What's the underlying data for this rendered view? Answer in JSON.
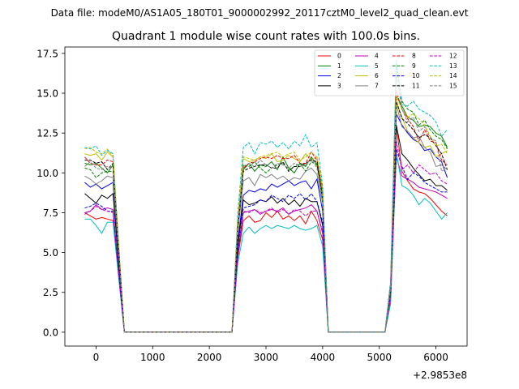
{
  "chart_data": {
    "type": "line",
    "suptitle": "Data file: modeM0/AS1A05_180T01_9000002992_20117cztM0_level2_quad_clean.evt",
    "title": "Quadrant 1 module wise count rates with 100.0s bins.",
    "xlabel": "",
    "ylabel": "",
    "x_offset_label": "+2.9853e8",
    "xlim": [
      -550,
      6550
    ],
    "ylim": [
      -0.87,
      17.9
    ],
    "xticks": [
      0,
      1000,
      2000,
      3000,
      4000,
      5000,
      6000
    ],
    "xtick_labels": [
      "0",
      "1000",
      "2000",
      "3000",
      "4000",
      "5000",
      "6000"
    ],
    "yticks": [
      0,
      2.5,
      5,
      7.5,
      10,
      12.5,
      15,
      17.5
    ],
    "ytick_labels": [
      "0.0",
      "2.5",
      "5.0",
      "7.5",
      "10.0",
      "12.5",
      "15.0",
      "17.5"
    ],
    "legend_position": "top-right",
    "x": [
      -200,
      -100,
      0,
      100,
      200,
      300,
      400,
      500,
      2400,
      2500,
      2600,
      2700,
      2800,
      2900,
      3000,
      3100,
      3200,
      3300,
      3400,
      3500,
      3600,
      3700,
      3800,
      3900,
      4000,
      4100,
      5100,
      5200,
      5300,
      5400,
      5500,
      5600,
      5700,
      5800,
      5900,
      6000,
      6100,
      6200
    ],
    "series": [
      {
        "name": "0",
        "color": "#ff0000",
        "dash": "solid",
        "values": [
          7.5,
          7.3,
          7.1,
          7.2,
          7.1,
          7.0,
          3.5,
          0,
          0,
          4.6,
          7.0,
          7.3,
          6.9,
          7.0,
          7.5,
          7.2,
          7.6,
          7.1,
          7.3,
          7.0,
          7.3,
          6.8,
          7.6,
          7.0,
          5.8,
          0,
          0,
          2.0,
          13.0,
          10.1,
          9.5,
          9.0,
          8.8,
          8.7,
          8.4,
          8.0,
          7.6,
          7.3
        ]
      },
      {
        "name": "1",
        "color": "#008000",
        "dash": "solid",
        "values": [
          10.6,
          10.5,
          10.6,
          10.3,
          10.0,
          10.5,
          5.2,
          0,
          0,
          6.5,
          10.2,
          10.6,
          10.1,
          10.5,
          10.4,
          10.7,
          10.2,
          11.0,
          10.3,
          10.0,
          10.6,
          10.4,
          11.0,
          10.5,
          8.6,
          0,
          0,
          2.9,
          14.8,
          14.2,
          13.5,
          13.3,
          12.9,
          13.0,
          12.9,
          12.5,
          12.3,
          11.6
        ]
      },
      {
        "name": "2",
        "color": "#0000ff",
        "dash": "solid",
        "values": [
          9.4,
          9.1,
          9.3,
          9.0,
          9.2,
          9.4,
          4.6,
          0,
          0,
          5.6,
          8.6,
          8.9,
          8.8,
          9.0,
          8.9,
          9.3,
          9.1,
          9.3,
          9.5,
          9.2,
          9.4,
          9.5,
          9.0,
          9.6,
          7.6,
          0,
          0,
          2.5,
          13.7,
          13.0,
          12.5,
          12.1,
          11.9,
          11.4,
          11.5,
          11.0,
          10.7,
          9.7
        ]
      },
      {
        "name": "3",
        "color": "#000000",
        "dash": "solid",
        "values": [
          8.7,
          8.4,
          8.1,
          8.6,
          8.4,
          8.7,
          4.3,
          0,
          0,
          5.3,
          8.3,
          8.0,
          8.1,
          8.3,
          8.2,
          8.5,
          8.1,
          8.4,
          8.0,
          8.3,
          7.9,
          8.4,
          8.2,
          8.2,
          6.7,
          0,
          0,
          2.3,
          13.0,
          11.2,
          10.8,
          10.3,
          9.9,
          9.5,
          9.6,
          9.2,
          9.2,
          8.9
        ]
      },
      {
        "name": "4",
        "color": "#bf00bf",
        "dash": "solid",
        "values": [
          7.5,
          7.6,
          8.0,
          7.7,
          7.8,
          7.7,
          3.8,
          0,
          0,
          4.8,
          7.5,
          7.6,
          7.7,
          7.4,
          7.6,
          7.7,
          7.6,
          7.8,
          7.4,
          7.6,
          7.7,
          7.8,
          8.0,
          7.6,
          6.2,
          0,
          0,
          2.2,
          11.0,
          9.8,
          9.6,
          9.4,
          9.1,
          9.0,
          8.9,
          8.8,
          8.6,
          8.4
        ]
      },
      {
        "name": "5",
        "color": "#00bfbf",
        "dash": "solid",
        "values": [
          7.1,
          7.1,
          6.7,
          6.2,
          6.9,
          6.9,
          3.4,
          0,
          0,
          4.3,
          6.2,
          6.6,
          6.2,
          6.5,
          6.7,
          6.5,
          6.7,
          6.6,
          6.5,
          6.7,
          6.5,
          6.4,
          6.5,
          6.7,
          5.4,
          0,
          0,
          1.8,
          11.3,
          9.2,
          9.0,
          8.6,
          8.0,
          8.4,
          8.1,
          7.6,
          7.1,
          7.5
        ]
      },
      {
        "name": "6",
        "color": "#bfbf00",
        "dash": "solid",
        "values": [
          11.2,
          11.1,
          11.2,
          10.8,
          11.3,
          11.0,
          5.4,
          0,
          0,
          6.9,
          10.9,
          10.7,
          10.8,
          11.0,
          10.9,
          11.2,
          10.7,
          10.8,
          11.1,
          10.9,
          10.7,
          11.2,
          10.8,
          11.0,
          9.0,
          0,
          0,
          2.9,
          14.5,
          13.5,
          12.6,
          12.2,
          11.9,
          11.6,
          11.7,
          11.0,
          11.2,
          11.4
        ]
      },
      {
        "name": "7",
        "color": "#808080",
        "dash": "solid",
        "values": [
          9.8,
          9.6,
          9.3,
          9.5,
          9.8,
          9.7,
          4.9,
          0,
          0,
          6.2,
          9.5,
          9.7,
          9.2,
          9.9,
          9.7,
          9.9,
          9.6,
          9.8,
          9.5,
          9.7,
          9.6,
          10.1,
          10.3,
          9.9,
          8.1,
          0,
          0,
          2.6,
          14.3,
          12.9,
          12.6,
          12.2,
          12.3,
          11.6,
          11.3,
          10.4,
          10.5,
          10.2
        ]
      },
      {
        "name": "8",
        "color": "#ff0000",
        "dash": "dashed",
        "values": [
          11.0,
          10.6,
          10.5,
          10.5,
          10.8,
          10.7,
          5.3,
          0,
          0,
          6.8,
          10.3,
          10.6,
          10.7,
          10.9,
          11.0,
          10.9,
          11.1,
          10.9,
          10.9,
          11.1,
          10.6,
          10.6,
          11.3,
          10.8,
          8.8,
          0,
          0,
          3.0,
          15.1,
          14.0,
          13.4,
          12.9,
          12.0,
          12.7,
          12.0,
          11.9,
          10.8,
          10.5
        ]
      },
      {
        "name": "9",
        "color": "#008000",
        "dash": "dashed",
        "values": [
          10.3,
          10.2,
          9.7,
          10.0,
          10.1,
          10.1,
          5.1,
          0,
          0,
          6.4,
          10.5,
          10.4,
          10.7,
          10.3,
          10.0,
          10.3,
          10.5,
          10.6,
          10.2,
          10.4,
          10.6,
          10.1,
          10.7,
          10.5,
          8.7,
          0,
          0,
          3.2,
          16.7,
          14.5,
          14.0,
          13.8,
          13.0,
          13.3,
          12.7,
          12.3,
          12.1,
          11.5
        ]
      },
      {
        "name": "10",
        "color": "#0000ff",
        "dash": "dashed",
        "values": [
          7.8,
          7.9,
          8.1,
          7.9,
          7.6,
          7.6,
          3.7,
          0,
          0,
          4.8,
          7.8,
          7.9,
          8.0,
          8.3,
          8.2,
          8.6,
          8.4,
          8.2,
          8.6,
          8.4,
          8.7,
          8.3,
          8.7,
          8.2,
          6.9,
          0,
          0,
          2.4,
          11.5,
          10.4,
          9.6,
          10.0,
          9.8,
          9.4,
          9.2,
          9.0,
          8.8,
          8.8
        ]
      },
      {
        "name": "11",
        "color": "#000000",
        "dash": "dashed",
        "values": [
          10.8,
          10.8,
          10.6,
          10.7,
          10.2,
          10.6,
          5.3,
          0,
          0,
          6.4,
          10.1,
          10.3,
          10.4,
          10.5,
          10.5,
          10.3,
          10.3,
          10.7,
          10.1,
          10.4,
          10.4,
          10.6,
          10.8,
          10.7,
          8.3,
          0,
          0,
          2.8,
          14.5,
          13.4,
          13.1,
          12.7,
          12.2,
          12.4,
          12.2,
          11.7,
          11.2,
          10.2
        ]
      },
      {
        "name": "12",
        "color": "#bf00bf",
        "dash": "dashed",
        "values": [
          7.4,
          7.6,
          7.9,
          7.7,
          7.6,
          7.5,
          3.7,
          0,
          0,
          4.7,
          7.6,
          7.5,
          7.7,
          7.5,
          7.6,
          7.8,
          7.5,
          7.7,
          7.4,
          7.7,
          7.6,
          7.3,
          7.6,
          7.6,
          6.3,
          0,
          0,
          2.3,
          12.0,
          10.2,
          10.5,
          10.0,
          10.5,
          10.2,
          9.9,
          10.0,
          9.5,
          9.3
        ]
      },
      {
        "name": "13",
        "color": "#00bfbf",
        "dash": "dashed",
        "values": [
          11.6,
          11.5,
          11.7,
          11.1,
          11.4,
          11.2,
          5.5,
          0,
          0,
          7.4,
          11.6,
          11.9,
          11.2,
          11.9,
          11.8,
          12.0,
          11.6,
          11.9,
          11.5,
          12.0,
          11.7,
          12.4,
          11.6,
          11.9,
          9.2,
          0,
          0,
          3.1,
          17.1,
          14.3,
          14.2,
          14.5,
          14.0,
          13.8,
          13.6,
          13.2,
          12.3,
          12.7
        ]
      },
      {
        "name": "14",
        "color": "#bfbf00",
        "dash": "dashed",
        "values": [
          11.5,
          11.6,
          11.3,
          11.2,
          11.5,
          11.0,
          5.5,
          0,
          0,
          7.0,
          11.0,
          10.9,
          10.8,
          11.0,
          11.1,
          11.2,
          11.3,
          11.0,
          11.2,
          11.3,
          10.8,
          11.0,
          11.3,
          11.0,
          8.9,
          0,
          0,
          2.9,
          14.8,
          14.0,
          13.5,
          13.7,
          13.4,
          13.0,
          12.3,
          11.7,
          11.8,
          11.2
        ]
      },
      {
        "name": "15",
        "color": "#808080",
        "dash": "dashed",
        "values": [
          10.4,
          10.7,
          10.3,
          10.2,
          10.4,
          10.3,
          5.1,
          0,
          0,
          6.5,
          10.4,
          10.6,
          10.4,
          10.8,
          10.5,
          10.3,
          10.6,
          10.5,
          10.3,
          10.6,
          10.4,
          10.5,
          10.9,
          10.3,
          8.3,
          0,
          0,
          3.0,
          16.2,
          14.0,
          13.2,
          13.5,
          12.6,
          12.9,
          12.2,
          12.0,
          10.1,
          10.3
        ]
      }
    ]
  }
}
